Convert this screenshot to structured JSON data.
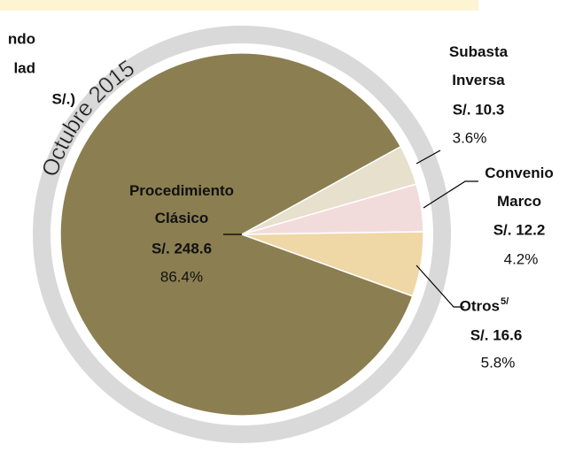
{
  "chart_data": {
    "type": "pie",
    "ring_label": "Octubre 2015",
    "title_fragments": [
      "ndo",
      "lad",
      "S/.)"
    ],
    "slices": [
      {
        "name": "Subasta Inversa",
        "value": 10.3,
        "value_label": "S/. 10.3",
        "percent": 3.6,
        "percent_label": "3.6%",
        "color": "#e6e0cc"
      },
      {
        "name": "Convenio Marco",
        "value": 12.2,
        "value_label": "S/. 12.2",
        "percent": 4.2,
        "percent_label": "4.2%",
        "color": "#f2dcdb"
      },
      {
        "name": "Otros",
        "note": "5/",
        "value": 16.6,
        "value_label": "S/. 16.6",
        "percent": 5.8,
        "percent_label": "5.8%",
        "color": "#efd7a6"
      },
      {
        "name": "Procedimiento Clásico",
        "value": 248.6,
        "value_label": "S/. 248.6",
        "percent": 86.4,
        "percent_label": "86.4%",
        "color": "#8b7e50"
      }
    ]
  }
}
